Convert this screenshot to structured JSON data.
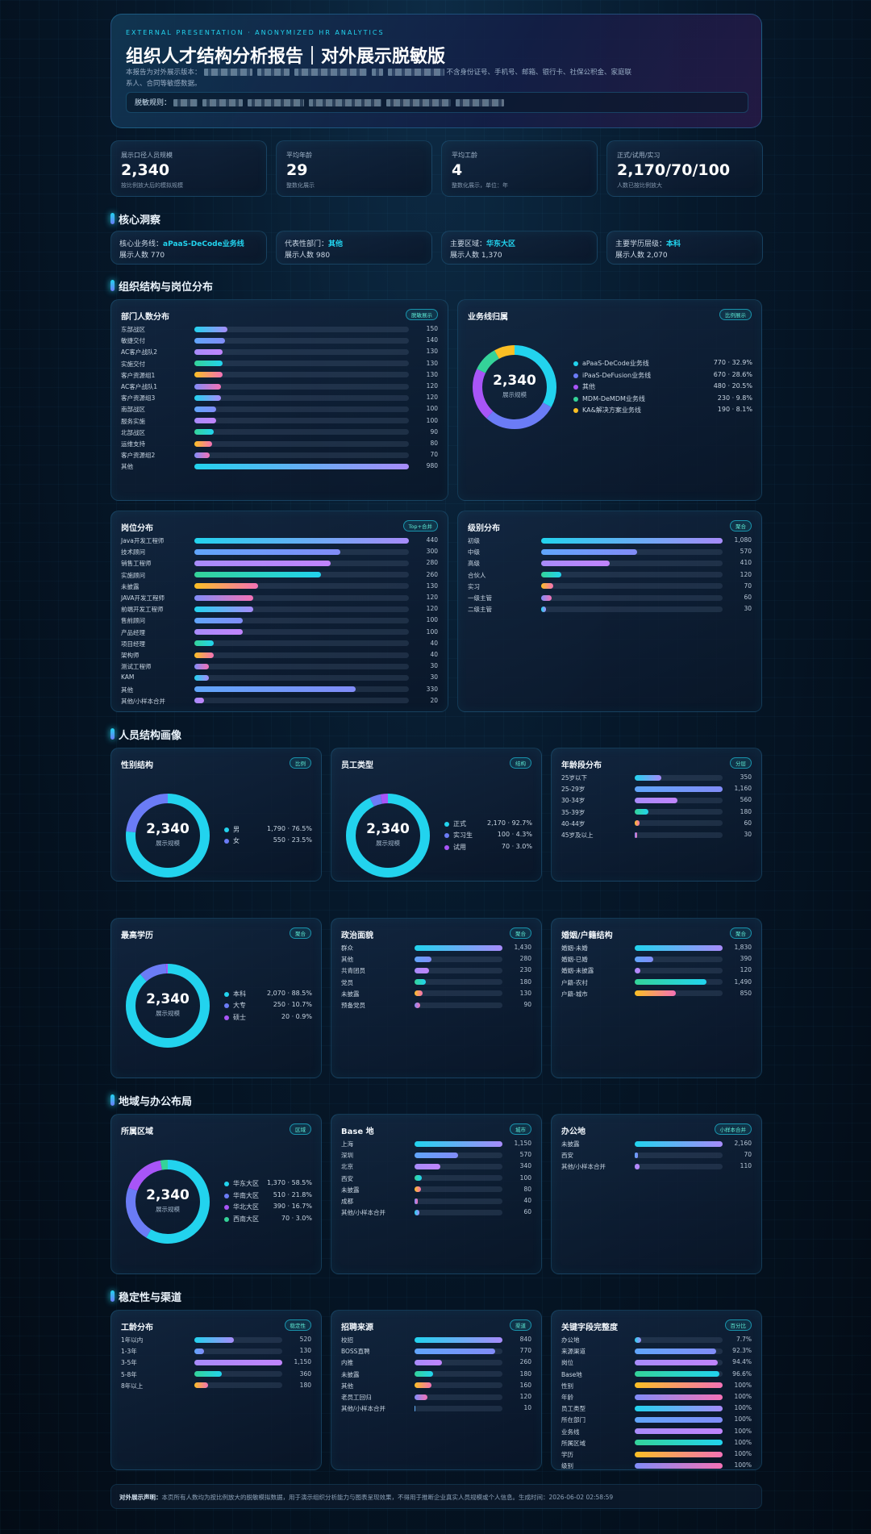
{
  "header": {
    "kicker": "EXTERNAL PRESENTATION · ANONYMIZED HR ANALYTICS",
    "title": "组织人才结构分析报告｜对外展示脱敏版",
    "desc_lead": "本报告为对外展示版本：",
    "desc_tail": "不含身份证号、手机号、邮箱、银行卡、社保公积金、家庭联系人、合同等敏感数据。",
    "rule_label": "脱敏规则："
  },
  "kpis": [
    {
      "label": "展示口径人员规模",
      "value": "2,340",
      "note": "按比例放大后的模拟规模"
    },
    {
      "label": "平均年龄",
      "value": "29",
      "note": "整数化展示"
    },
    {
      "label": "平均工龄",
      "value": "4",
      "note": "整数化展示，单位：年"
    },
    {
      "label": "正式/试用/实习",
      "value": "2,170/70/100",
      "note": "人数已按比例放大"
    }
  ],
  "insights": [
    {
      "label": "核心业务线：",
      "value": "aPaaS-DeCode业务线",
      "note": "展示人数 770"
    },
    {
      "label": "代表性部门：",
      "value": "其他",
      "note": "展示人数 980"
    },
    {
      "label": "主要区域：",
      "value": "华东大区",
      "note": "展示人数 1,370"
    },
    {
      "label": "主要学历层级：",
      "value": "本科",
      "note": "展示人数 2,070"
    }
  ],
  "sections": [
    "核心洞察",
    "组织结构与岗位分布",
    "人员结构画像",
    "地域与办公布局",
    "稳定性与渠道"
  ],
  "bar_gradients": [
    [
      "#22d3ee",
      "#a78bfa"
    ],
    [
      "#60a5fa",
      "#818cf8"
    ],
    [
      "#a78bfa",
      "#c084fc"
    ],
    [
      "#34d399",
      "#22d3ee"
    ],
    [
      "#fbbf24",
      "#f472b6"
    ],
    [
      "#818cf8",
      "#f472b6"
    ]
  ],
  "chart_data": [
    {
      "type": "bar",
      "title": "部门人数分布",
      "badge": "脱敏展示",
      "categories": [
        "东部战区",
        "敏捷交付",
        "AC客户战队2",
        "实施交付",
        "客户资源组1",
        "AC客户战队1",
        "客户资源组3",
        "南部战区",
        "服务实施",
        "北部战区",
        "运维支持",
        "客户资源组2",
        "其他"
      ],
      "values": [
        150,
        140,
        130,
        130,
        130,
        120,
        120,
        100,
        100,
        90,
        80,
        70,
        980
      ]
    },
    {
      "type": "pie",
      "title": "业务线归属",
      "badge": "比例展示",
      "center_value": "2,340",
      "center_label": "展示规模",
      "categories": [
        "aPaaS-DeCode业务线",
        "iPaaS-DeFusion业务线",
        "其他",
        "MDM-DeMDM业务线",
        "KA&解决方案业务线"
      ],
      "values": [
        770,
        670,
        480,
        230,
        190
      ],
      "value_labels": [
        "770 · 32.9%",
        "670 · 28.6%",
        "480 · 20.5%",
        "230 · 9.8%",
        "190 · 8.1%"
      ],
      "colors": [
        "#22d3ee",
        "#6b7cf6",
        "#a855f7",
        "#34d399",
        "#fbbf24"
      ]
    },
    {
      "type": "bar",
      "title": "岗位分布",
      "badge": "Top+合并",
      "categories": [
        "Java开发工程师",
        "技术顾问",
        "销售工程师",
        "实施顾问",
        "未披露",
        "JAVA开发工程师",
        "前端开发工程师",
        "售前顾问",
        "产品经理",
        "项目经理",
        "架构师",
        "测试工程师",
        "KAM",
        "其他",
        "其他/小样本合并"
      ],
      "values": [
        440,
        300,
        280,
        260,
        130,
        120,
        120,
        100,
        100,
        40,
        40,
        30,
        30,
        330,
        20
      ]
    },
    {
      "type": "bar",
      "title": "级别分布",
      "badge": "聚合",
      "categories": [
        "初级",
        "中级",
        "高级",
        "合伙人",
        "实习",
        "一级主管",
        "二级主管"
      ],
      "values": [
        1080,
        570,
        410,
        120,
        70,
        60,
        30
      ],
      "value_labels": [
        "1,080",
        "570",
        "410",
        "120",
        "70",
        "60",
        "30"
      ]
    },
    {
      "type": "pie",
      "title": "性别结构",
      "badge": "比例",
      "center_value": "2,340",
      "center_label": "展示规模",
      "categories": [
        "男",
        "女"
      ],
      "values": [
        1790,
        550
      ],
      "value_labels": [
        "1,790 · 76.5%",
        "550 · 23.5%"
      ],
      "colors": [
        "#22d3ee",
        "#6b7cf6"
      ]
    },
    {
      "type": "pie",
      "title": "员工类型",
      "badge": "结构",
      "center_value": "2,340",
      "center_label": "展示规模",
      "categories": [
        "正式",
        "实习生",
        "试用"
      ],
      "values": [
        2170,
        100,
        70
      ],
      "value_labels": [
        "2,170 · 92.7%",
        "100 · 4.3%",
        "70 · 3.0%"
      ],
      "colors": [
        "#22d3ee",
        "#6b7cf6",
        "#a855f7"
      ]
    },
    {
      "type": "bar",
      "title": "年龄段分布",
      "badge": "分层",
      "categories": [
        "25岁以下",
        "25-29岁",
        "30-34岁",
        "35-39岁",
        "40-44岁",
        "45岁及以上"
      ],
      "values": [
        350,
        1160,
        560,
        180,
        60,
        30
      ],
      "value_labels": [
        "350",
        "1,160",
        "560",
        "180",
        "60",
        "30"
      ]
    },
    {
      "type": "pie",
      "title": "最高学历",
      "badge": "聚合",
      "center_value": "2,340",
      "center_label": "展示规模",
      "categories": [
        "本科",
        "大专",
        "硕士"
      ],
      "values": [
        2070,
        250,
        20
      ],
      "value_labels": [
        "2,070 · 88.5%",
        "250 · 10.7%",
        "20 · 0.9%"
      ],
      "colors": [
        "#22d3ee",
        "#6b7cf6",
        "#a855f7"
      ]
    },
    {
      "type": "bar",
      "title": "政治面貌",
      "badge": "聚合",
      "categories": [
        "群众",
        "其他",
        "共青团员",
        "党员",
        "未披露",
        "预备党员"
      ],
      "values": [
        1430,
        280,
        230,
        180,
        130,
        90
      ],
      "value_labels": [
        "1,430",
        "280",
        "230",
        "180",
        "130",
        "90"
      ]
    },
    {
      "type": "bar",
      "title": "婚姻/户籍结构",
      "badge": "聚合",
      "categories": [
        "婚姻-未婚",
        "婚姻-已婚",
        "婚姻-未披露",
        "户籍-农村",
        "户籍-城市"
      ],
      "values": [
        1830,
        390,
        120,
        1490,
        850
      ],
      "value_labels": [
        "1,830",
        "390",
        "120",
        "1,490",
        "850"
      ]
    },
    {
      "type": "pie",
      "title": "所属区域",
      "badge": "区域",
      "center_value": "2,340",
      "center_label": "展示规模",
      "categories": [
        "华东大区",
        "华南大区",
        "华北大区",
        "西南大区"
      ],
      "values": [
        1370,
        510,
        390,
        70
      ],
      "value_labels": [
        "1,370 · 58.5%",
        "510 · 21.8%",
        "390 · 16.7%",
        "70 · 3.0%"
      ],
      "colors": [
        "#22d3ee",
        "#6b7cf6",
        "#a855f7",
        "#34d399"
      ]
    },
    {
      "type": "bar",
      "title": "Base 地",
      "badge": "城市",
      "categories": [
        "上海",
        "深圳",
        "北京",
        "西安",
        "未披露",
        "成都",
        "其他/小样本合并"
      ],
      "values": [
        1150,
        570,
        340,
        100,
        80,
        40,
        60
      ],
      "value_labels": [
        "1,150",
        "570",
        "340",
        "100",
        "80",
        "40",
        "60"
      ]
    },
    {
      "type": "bar",
      "title": "办公地",
      "badge": "小样本合并",
      "categories": [
        "未披露",
        "西安",
        "其他/小样本合并"
      ],
      "values": [
        2160,
        70,
        110
      ],
      "value_labels": [
        "2,160",
        "70",
        "110"
      ]
    },
    {
      "type": "bar",
      "title": "工龄分布",
      "badge": "稳定性",
      "categories": [
        "1年以内",
        "1-3年",
        "3-5年",
        "5-8年",
        "8年以上"
      ],
      "values": [
        520,
        130,
        1150,
        360,
        180
      ],
      "value_labels": [
        "520",
        "130",
        "1,150",
        "360",
        "180"
      ]
    },
    {
      "type": "bar",
      "title": "招聘来源",
      "badge": "渠道",
      "categories": [
        "校招",
        "BOSS直聘",
        "内推",
        "未披露",
        "其他",
        "老员工回归",
        "其他/小样本合并"
      ],
      "values": [
        840,
        770,
        260,
        180,
        160,
        120,
        10
      ]
    },
    {
      "type": "bar",
      "title": "关键字段完整度",
      "badge": "百分比",
      "categories": [
        "办公地",
        "来源渠道",
        "岗位",
        "Base地",
        "性别",
        "年龄",
        "员工类型",
        "所在部门",
        "业务线",
        "所属区域",
        "学历",
        "级别"
      ],
      "values": [
        7.7,
        92.3,
        94.4,
        96.6,
        100,
        100,
        100,
        100,
        100,
        100,
        100,
        100
      ],
      "value_labels": [
        "7.7%",
        "92.3%",
        "94.4%",
        "96.6%",
        "100%",
        "100%",
        "100%",
        "100%",
        "100%",
        "100%",
        "100%",
        "100%"
      ]
    }
  ],
  "footer": {
    "label": "对外展示声明：",
    "text": "本页所有人数均为按比例放大的脱敏模拟数据，用于演示组织分析能力与图表呈现效果，不得用于推断企业真实人员规模或个人信息。生成时间：2026-06-02 02:58:59"
  }
}
